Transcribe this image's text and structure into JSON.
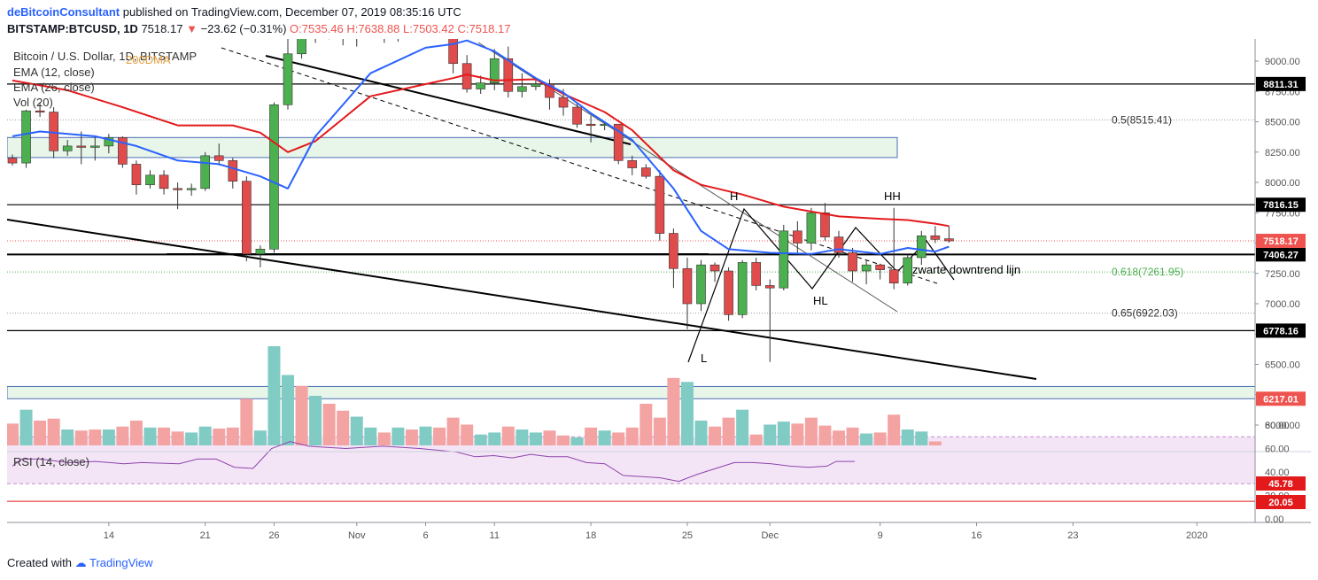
{
  "header": {
    "author": "deBitcoinConsultant",
    "published": "published on TradingView.com, December 07, 2019 08:35:16 UTC",
    "symbol": "BITSTAMP:BTCUSD, 1D",
    "last": "7518.17",
    "change_arrow": "▼",
    "change": "−23.62 (−0.31%)",
    "ohlc": {
      "o": "O:7535.46",
      "h": "H:7638.88",
      "l": "L:7503.42",
      "c": "C:7518.17"
    }
  },
  "legend": {
    "title": "Bitcoin / U.S. Dollar, 1D, BITSTAMP",
    "ema12": "EMA (12, close)",
    "ema26": "EMA (26, close)",
    "vol": "Vol (20)",
    "ma200": "200DMA"
  },
  "rsi_legend": "RSI (14, close)",
  "footer": {
    "created": "Created with",
    "brand": "TradingView"
  },
  "colors": {
    "up": "#26a69a",
    "down": "#ef5350",
    "ema12": "#2962ff",
    "ema26": "#e31a1c",
    "zone": "#e8f5e9"
  },
  "chart_data": {
    "type": "candlestick",
    "price_range": [
      6450,
      9300
    ],
    "y_ticks": [
      "9000.00",
      "8750.00",
      "8500.00",
      "8250.00",
      "8000.00",
      "7750.00",
      "7500.00",
      "7250.00",
      "7000.00",
      "6750.00",
      "6500.00",
      "6250.00",
      "6000.00"
    ],
    "rsi_ticks": [
      "80.00",
      "60.00",
      "40.00",
      "20.00",
      "0.00"
    ],
    "x_ticks": [
      {
        "label": "14",
        "date": "2019-10-14"
      },
      {
        "label": "21",
        "date": "2019-10-21"
      },
      {
        "label": "26",
        "date": "2019-10-26"
      },
      {
        "label": "Nov",
        "date": "2019-11-01"
      },
      {
        "label": "6",
        "date": "2019-11-06"
      },
      {
        "label": "11",
        "date": "2019-11-11"
      },
      {
        "label": "18",
        "date": "2019-11-18"
      },
      {
        "label": "25",
        "date": "2019-11-25"
      },
      {
        "label": "Dec",
        "date": "2019-12-01"
      },
      {
        "label": "9",
        "date": "2019-12-09"
      },
      {
        "label": "16",
        "date": "2019-12-16"
      },
      {
        "label": "23",
        "date": "2019-12-23"
      },
      {
        "label": "2020",
        "date": "2020-01-01"
      }
    ],
    "candles": [
      [
        "2019-10-07",
        8200,
        8230,
        8140,
        8160
      ],
      [
        "2019-10-08",
        8160,
        8600,
        8120,
        8590
      ],
      [
        "2019-10-09",
        8590,
        8660,
        8540,
        8580
      ],
      [
        "2019-10-10",
        8580,
        8620,
        8200,
        8260
      ],
      [
        "2019-10-11",
        8260,
        8350,
        8220,
        8300
      ],
      [
        "2019-10-12",
        8300,
        8420,
        8150,
        8290
      ],
      [
        "2019-10-13",
        8290,
        8380,
        8180,
        8300
      ],
      [
        "2019-10-14",
        8300,
        8400,
        8240,
        8370
      ],
      [
        "2019-10-15",
        8370,
        8380,
        8120,
        8150
      ],
      [
        "2019-10-16",
        8150,
        8180,
        7900,
        7980
      ],
      [
        "2019-10-17",
        7980,
        8100,
        7950,
        8060
      ],
      [
        "2019-10-18",
        8060,
        8100,
        7900,
        7950
      ],
      [
        "2019-10-19",
        7950,
        8000,
        7780,
        7940
      ],
      [
        "2019-10-20",
        7940,
        7990,
        7890,
        7950
      ],
      [
        "2019-10-21",
        7950,
        8250,
        7930,
        8220
      ],
      [
        "2019-10-22",
        8220,
        8320,
        8140,
        8180
      ],
      [
        "2019-10-23",
        8180,
        8200,
        7950,
        8010
      ],
      [
        "2019-10-24",
        8010,
        8050,
        7350,
        7410
      ],
      [
        "2019-10-25",
        7410,
        7480,
        7300,
        7450
      ],
      [
        "2019-10-26",
        7450,
        8660,
        7420,
        8640
      ],
      [
        "2019-10-27",
        8640,
        9250,
        8600,
        9060
      ],
      [
        "2019-10-28",
        9060,
        9380,
        9020,
        9300
      ],
      [
        "2019-10-29",
        9300,
        9400,
        9150,
        9330
      ],
      [
        "2019-10-30",
        9330,
        9400,
        9180,
        9200
      ],
      [
        "2019-10-31",
        9200,
        9310,
        9130,
        9200
      ],
      [
        "2019-11-01",
        9200,
        9300,
        9120,
        9250
      ],
      [
        "2019-11-02",
        9250,
        9320,
        9200,
        9260
      ],
      [
        "2019-11-03",
        9260,
        9300,
        9150,
        9230
      ],
      [
        "2019-11-04",
        9230,
        9320,
        9160,
        9280
      ],
      [
        "2019-11-05",
        9280,
        9350,
        9220,
        9300
      ],
      [
        "2019-11-06",
        9300,
        9360,
        9230,
        9320
      ],
      [
        "2019-11-07",
        9320,
        9350,
        9240,
        9260
      ],
      [
        "2019-11-08",
        9260,
        9280,
        8900,
        8980
      ],
      [
        "2019-11-09",
        8980,
        9050,
        8740,
        8770
      ],
      [
        "2019-11-10",
        8770,
        8880,
        8730,
        8820
      ],
      [
        "2019-11-11",
        8820,
        9100,
        8760,
        9020
      ],
      [
        "2019-11-12",
        9020,
        9120,
        8700,
        8750
      ],
      [
        "2019-11-13",
        8750,
        8900,
        8700,
        8790
      ],
      [
        "2019-11-14",
        8790,
        8860,
        8760,
        8810
      ],
      [
        "2019-11-15",
        8810,
        8850,
        8600,
        8700
      ],
      [
        "2019-11-16",
        8700,
        8770,
        8550,
        8620
      ],
      [
        "2019-11-17",
        8620,
        8650,
        8450,
        8480
      ],
      [
        "2019-11-18",
        8480,
        8550,
        8330,
        8470
      ],
      [
        "2019-11-19",
        8470,
        8500,
        8430,
        8480
      ],
      [
        "2019-11-20",
        8480,
        8480,
        8150,
        8180
      ],
      [
        "2019-11-21",
        8180,
        8220,
        8060,
        8120
      ],
      [
        "2019-11-22",
        8120,
        8150,
        8030,
        8050
      ],
      [
        "2019-11-23",
        8050,
        8100,
        7520,
        7580
      ],
      [
        "2019-11-24",
        7580,
        7620,
        7130,
        7290
      ],
      [
        "2019-11-25",
        7290,
        7380,
        6790,
        7000
      ],
      [
        "2019-11-26",
        7000,
        7360,
        6940,
        7320
      ],
      [
        "2019-11-27",
        7320,
        7340,
        7180,
        7270
      ],
      [
        "2019-11-28",
        7270,
        7300,
        6860,
        6910
      ],
      [
        "2019-11-29",
        6910,
        7360,
        6880,
        7340
      ],
      [
        "2019-11-30",
        7340,
        7380,
        7110,
        7150
      ],
      [
        "2019-12-01",
        7150,
        7200,
        6520,
        7130
      ],
      [
        "2019-12-02",
        7130,
        7650,
        7110,
        7600
      ],
      [
        "2019-12-03",
        7600,
        7680,
        7420,
        7500
      ],
      [
        "2019-12-04",
        7500,
        7790,
        7440,
        7750
      ],
      [
        "2019-12-05",
        7750,
        7830,
        7520,
        7550
      ],
      [
        "2019-12-06",
        7550,
        7600,
        7380,
        7420
      ],
      [
        "2019-12-07",
        7420,
        7460,
        7180,
        7270
      ],
      [
        "2019-12-08",
        7270,
        7360,
        7160,
        7320
      ],
      [
        "2019-12-09",
        7320,
        7330,
        7200,
        7280
      ],
      [
        "2019-12-10",
        7280,
        7790,
        7120,
        7170
      ],
      [
        "2019-12-11",
        7170,
        7400,
        7150,
        7380
      ],
      [
        "2019-12-12",
        7380,
        7600,
        7320,
        7560
      ],
      [
        "2019-12-13",
        7560,
        7640,
        7500,
        7530
      ],
      [
        "2019-12-14",
        7535.46,
        7638.88,
        7503.42,
        7518.17
      ]
    ],
    "ema12": [
      [
        0,
        8380
      ],
      [
        2,
        8420
      ],
      [
        6,
        8380
      ],
      [
        9,
        8300
      ],
      [
        12,
        8180
      ],
      [
        15,
        8150
      ],
      [
        18,
        8050
      ],
      [
        20,
        7950
      ],
      [
        22,
        8380
      ],
      [
        26,
        8900
      ],
      [
        30,
        9110
      ],
      [
        32,
        9140
      ],
      [
        33,
        9170
      ],
      [
        35,
        9080
      ],
      [
        38,
        8860
      ],
      [
        40,
        8740
      ],
      [
        42,
        8570
      ],
      [
        45,
        8350
      ],
      [
        48,
        7950
      ],
      [
        50,
        7600
      ],
      [
        52,
        7450
      ],
      [
        55,
        7420
      ],
      [
        58,
        7410
      ],
      [
        60,
        7450
      ],
      [
        63,
        7410
      ],
      [
        65,
        7460
      ],
      [
        67,
        7430
      ],
      [
        68,
        7470
      ]
    ],
    "ema26": [
      [
        0,
        8840
      ],
      [
        4,
        8760
      ],
      [
        8,
        8620
      ],
      [
        12,
        8470
      ],
      [
        16,
        8470
      ],
      [
        18,
        8410
      ],
      [
        20,
        8250
      ],
      [
        22,
        8340
      ],
      [
        26,
        8710
      ],
      [
        30,
        8810
      ],
      [
        32,
        8860
      ],
      [
        33,
        8890
      ],
      [
        35,
        8840
      ],
      [
        38,
        8850
      ],
      [
        40,
        8730
      ],
      [
        43,
        8580
      ],
      [
        45,
        8430
      ],
      [
        48,
        8100
      ],
      [
        50,
        7980
      ],
      [
        53,
        7900
      ],
      [
        56,
        7800
      ],
      [
        60,
        7720
      ],
      [
        63,
        7700
      ],
      [
        65,
        7690
      ],
      [
        67,
        7660
      ],
      [
        68,
        7640
      ]
    ],
    "volume": [
      [
        "2019-10-07",
        0.22,
        "down"
      ],
      [
        "2019-10-08",
        0.36,
        "up"
      ],
      [
        "2019-10-09",
        0.25,
        "down"
      ],
      [
        "2019-10-10",
        0.27,
        "down"
      ],
      [
        "2019-10-11",
        0.16,
        "up"
      ],
      [
        "2019-10-12",
        0.15,
        "down"
      ],
      [
        "2019-10-13",
        0.16,
        "down"
      ],
      [
        "2019-10-14",
        0.16,
        "up"
      ],
      [
        "2019-10-15",
        0.19,
        "down"
      ],
      [
        "2019-10-16",
        0.25,
        "down"
      ],
      [
        "2019-10-17",
        0.18,
        "up"
      ],
      [
        "2019-10-18",
        0.18,
        "down"
      ],
      [
        "2019-10-19",
        0.14,
        "down"
      ],
      [
        "2019-10-20",
        0.13,
        "up"
      ],
      [
        "2019-10-21",
        0.19,
        "up"
      ],
      [
        "2019-10-22",
        0.17,
        "down"
      ],
      [
        "2019-10-23",
        0.18,
        "down"
      ],
      [
        "2019-10-24",
        0.47,
        "down"
      ],
      [
        "2019-10-25",
        0.15,
        "up"
      ],
      [
        "2019-10-26",
        1.0,
        "up"
      ],
      [
        "2019-10-27",
        0.71,
        "up"
      ],
      [
        "2019-10-28",
        0.6,
        "down"
      ],
      [
        "2019-10-29",
        0.5,
        "up"
      ],
      [
        "2019-10-30",
        0.42,
        "down"
      ],
      [
        "2019-10-31",
        0.35,
        "down"
      ],
      [
        "2019-11-01",
        0.29,
        "up"
      ],
      [
        "2019-11-02",
        0.18,
        "up"
      ],
      [
        "2019-11-03",
        0.13,
        "down"
      ],
      [
        "2019-11-04",
        0.18,
        "up"
      ],
      [
        "2019-11-05",
        0.16,
        "down"
      ],
      [
        "2019-11-06",
        0.19,
        "up"
      ],
      [
        "2019-11-07",
        0.18,
        "down"
      ],
      [
        "2019-11-08",
        0.28,
        "down"
      ],
      [
        "2019-11-09",
        0.21,
        "down"
      ],
      [
        "2019-11-10",
        0.11,
        "up"
      ],
      [
        "2019-11-11",
        0.13,
        "up"
      ],
      [
        "2019-11-12",
        0.19,
        "down"
      ],
      [
        "2019-11-13",
        0.16,
        "up"
      ],
      [
        "2019-11-14",
        0.13,
        "up"
      ],
      [
        "2019-11-15",
        0.15,
        "down"
      ],
      [
        "2019-11-16",
        0.1,
        "down"
      ],
      [
        "2019-11-17",
        0.08,
        "up"
      ],
      [
        "2019-11-18",
        0.18,
        "down"
      ],
      [
        "2019-11-19",
        0.15,
        "up"
      ],
      [
        "2019-11-20",
        0.13,
        "down"
      ],
      [
        "2019-11-21",
        0.18,
        "down"
      ],
      [
        "2019-11-22",
        0.42,
        "down"
      ],
      [
        "2019-11-23",
        0.28,
        "down"
      ],
      [
        "2019-11-24",
        0.68,
        "down"
      ],
      [
        "2019-11-25",
        0.64,
        "up"
      ],
      [
        "2019-11-26",
        0.25,
        "up"
      ],
      [
        "2019-11-27",
        0.19,
        "down"
      ],
      [
        "2019-11-28",
        0.28,
        "down"
      ],
      [
        "2019-11-29",
        0.36,
        "up"
      ],
      [
        "2019-11-30",
        0.11,
        "down"
      ],
      [
        "2019-12-01",
        0.21,
        "up"
      ],
      [
        "2019-12-02",
        0.24,
        "up"
      ],
      [
        "2019-12-03",
        0.22,
        "down"
      ],
      [
        "2019-12-04",
        0.28,
        "down"
      ],
      [
        "2019-12-05",
        0.2,
        "down"
      ],
      [
        "2019-12-06",
        0.15,
        "down"
      ],
      [
        "2019-12-07",
        0.18,
        "down"
      ],
      [
        "2019-12-08",
        0.12,
        "up"
      ],
      [
        "2019-12-09",
        0.13,
        "down"
      ],
      [
        "2019-12-10",
        0.31,
        "down"
      ],
      [
        "2019-12-11",
        0.16,
        "up"
      ],
      [
        "2019-12-12",
        0.14,
        "up"
      ],
      [
        "2019-12-13",
        0.04,
        "down"
      ]
    ],
    "rsi": [
      [
        0,
        45
      ],
      [
        1,
        51
      ],
      [
        3,
        51
      ],
      [
        6,
        48
      ],
      [
        9,
        49
      ],
      [
        12,
        47
      ],
      [
        14,
        48
      ],
      [
        18,
        47
      ],
      [
        20,
        51
      ],
      [
        22,
        51
      ],
      [
        24,
        44
      ],
      [
        26,
        43
      ],
      [
        28,
        60
      ],
      [
        30,
        66
      ],
      [
        32,
        62
      ],
      [
        34,
        61
      ],
      [
        36,
        60
      ],
      [
        40,
        62
      ],
      [
        44,
        60
      ],
      [
        48,
        57
      ],
      [
        50,
        53
      ],
      [
        52,
        54
      ],
      [
        54,
        52
      ],
      [
        56,
        55
      ],
      [
        58,
        53
      ],
      [
        60,
        53
      ],
      [
        62,
        48
      ],
      [
        64,
        47
      ],
      [
        66,
        37
      ],
      [
        68,
        36
      ],
      [
        70,
        35
      ],
      [
        72,
        32
      ],
      [
        74,
        38
      ],
      [
        76,
        43
      ],
      [
        78,
        48
      ],
      [
        80,
        48
      ],
      [
        82,
        47
      ],
      [
        84,
        45
      ],
      [
        86,
        44
      ],
      [
        88,
        45
      ],
      [
        89,
        49
      ],
      [
        90,
        49
      ],
      [
        91,
        49
      ]
    ],
    "rsi_band": [
      30,
      70
    ],
    "levels": [
      {
        "price": 8811.31,
        "label": "8811.31"
      },
      {
        "price": 7816.15,
        "label": "7816.15"
      },
      {
        "price": 7406.27,
        "label": "7406.27"
      },
      {
        "price": 6778.16,
        "label": "6778.16"
      }
    ],
    "last_price": {
      "price": 7518.17,
      "label": "7518.17"
    },
    "fib": [
      {
        "price": 8515.41,
        "label": "0.5(8515.41)"
      },
      {
        "price": 7261.95,
        "label": "0.618(7261.95)"
      },
      {
        "price": 6922.03,
        "label": "0.65(6922.03)"
      }
    ],
    "zone_top": {
      "from": 8370,
      "to": 8205
    },
    "zone_bottom": {
      "from": 6318,
      "to": 6217,
      "label": "6217.01"
    },
    "rsi_markers": {
      "rsi_value": "45.78",
      "lower": "20.05"
    },
    "annotations": {
      "H": "H",
      "HH": "HH",
      "HL": "HL",
      "L": "L",
      "downtrend": "zwarte downtrend lijn"
    }
  }
}
